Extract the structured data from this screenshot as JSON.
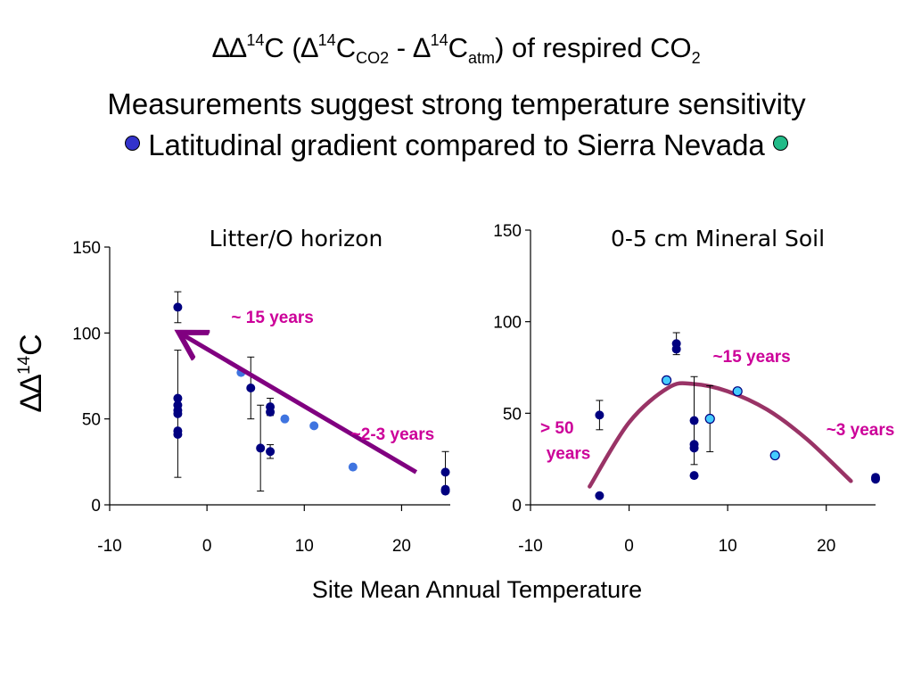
{
  "slide": {
    "title": {
      "delta": "∆∆",
      "sup1": "14",
      "c1": "C (",
      "delta2": "∆",
      "sup2": "14",
      "c2": "C",
      "sub1": "CO2",
      "minus": " - ",
      "delta3": "∆",
      "sup3": "14",
      "c3": "C",
      "sub2": "atm",
      "tail": ") of respired CO",
      "sub3": "2"
    },
    "subtitle": "Measurements suggest strong temperature sensitivity",
    "gradient_text": "Latitudinal gradient compared to Sierra Nevada",
    "legend_colors": {
      "latitudinal": "#3333cc",
      "sierra": "#22bb88"
    },
    "xlabel": "Site Mean Annual Temperature",
    "ylabel": {
      "base": "∆∆",
      "sup": "14",
      "tail": "C"
    }
  },
  "chart_data": [
    {
      "type": "scatter",
      "title": "Litter/O horizon",
      "xlim": [
        -10,
        25
      ],
      "ylim": [
        0,
        150
      ],
      "xticks": [
        -10,
        0,
        10,
        20
      ],
      "yticks": [
        0,
        50,
        100,
        150
      ],
      "tick_labels_x": [
        "-10",
        "0",
        "10",
        "20"
      ],
      "tick_labels_y": [
        "0",
        "50",
        "100",
        "150"
      ],
      "series": [
        {
          "color": "#000080",
          "points": [
            {
              "x": -3,
              "y": 115,
              "err": 9
            },
            {
              "x": -3,
              "y": 62
            },
            {
              "x": -3,
              "y": 58
            },
            {
              "x": -3,
              "y": 55
            },
            {
              "x": -3,
              "y": 53,
              "err": 37
            },
            {
              "x": -3,
              "y": 43
            },
            {
              "x": -3,
              "y": 41
            },
            {
              "x": 4.5,
              "y": 68,
              "err": 18
            },
            {
              "x": 5.5,
              "y": 33,
              "err": 25
            },
            {
              "x": 6.5,
              "y": 57,
              "err": 5
            },
            {
              "x": 6.5,
              "y": 54
            },
            {
              "x": 6.5,
              "y": 31,
              "err": 4
            },
            {
              "x": 24.5,
              "y": 19,
              "err": 12
            },
            {
              "x": 24.5,
              "y": 9
            },
            {
              "x": 24.5,
              "y": 8
            }
          ]
        },
        {
          "color": "#3f74e0",
          "points": [
            {
              "x": 3.5,
              "y": 77
            },
            {
              "x": 8,
              "y": 50
            },
            {
              "x": 11,
              "y": 46
            },
            {
              "x": 15,
              "y": 22
            }
          ]
        }
      ],
      "arrow": {
        "from": [
          21.5,
          19
        ],
        "to": [
          -2.5,
          99
        ],
        "color": "#800080"
      },
      "annotations": [
        {
          "text": "~ 15 years",
          "x": 2.5,
          "y": 106
        },
        {
          "text": "~2-3 years",
          "x": 14.8,
          "y": 38
        }
      ]
    },
    {
      "type": "scatter",
      "title": "0-5 cm Mineral Soil",
      "xlim": [
        -10,
        25
      ],
      "ylim": [
        0,
        150
      ],
      "xticks": [
        -10,
        0,
        10,
        20
      ],
      "yticks": [
        0,
        50,
        100,
        150
      ],
      "tick_labels_x": [
        "-10",
        "0",
        "10",
        "20"
      ],
      "tick_labels_y": [
        "0",
        "50",
        "100",
        "150"
      ],
      "series": [
        {
          "color": "#000080",
          "points": [
            {
              "x": -3,
              "y": 49,
              "err": 8
            },
            {
              "x": -3,
              "y": 5
            },
            {
              "x": 4.8,
              "y": 88,
              "err": 6
            },
            {
              "x": 4.8,
              "y": 85
            },
            {
              "x": 6.6,
              "y": 46,
              "err": 24
            },
            {
              "x": 6.6,
              "y": 33
            },
            {
              "x": 6.6,
              "y": 31
            },
            {
              "x": 6.6,
              "y": 16
            },
            {
              "x": 25,
              "y": 15
            },
            {
              "x": 25,
              "y": 14
            }
          ]
        },
        {
          "color": "#44ccff",
          "points": [
            {
              "x": 3.8,
              "y": 68
            },
            {
              "x": 8.2,
              "y": 47,
              "err": 18
            },
            {
              "x": 11,
              "y": 62
            },
            {
              "x": 14.8,
              "y": 27
            }
          ]
        }
      ],
      "fit_curve": {
        "color": "#993366",
        "points": [
          [
            -4,
            10
          ],
          [
            0,
            45
          ],
          [
            4,
            64
          ],
          [
            6.5,
            66
          ],
          [
            10,
            62
          ],
          [
            14,
            52
          ],
          [
            18,
            36
          ],
          [
            22.5,
            13
          ]
        ]
      },
      "annotations": [
        {
          "text": "~15 years",
          "x": 8.5,
          "y": 78
        },
        {
          "text": "> 50",
          "x": -9,
          "y": 39
        },
        {
          "text": "years",
          "x": -8.4,
          "y": 25
        },
        {
          "text": "~3 years",
          "x": 20,
          "y": 38
        }
      ]
    }
  ]
}
